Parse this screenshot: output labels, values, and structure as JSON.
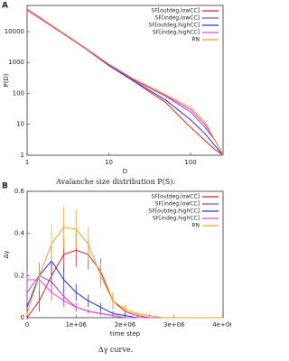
{
  "chart_data": [
    {
      "type": "line",
      "label": "A",
      "xlabel": "D",
      "ylabel": "P(D)",
      "caption": "Avalanche size distribution P(S).",
      "xlog": true,
      "ylog": true,
      "xlim": [
        1,
        250
      ],
      "ylim": [
        1,
        70000
      ],
      "xticks": [
        1,
        10,
        100
      ],
      "yticks": [
        1,
        10,
        100,
        1000,
        10000
      ],
      "x": [
        1,
        2,
        5,
        10,
        20,
        50,
        100,
        150,
        200,
        250
      ],
      "series": [
        {
          "name": "SF[outdeg,lowCC]",
          "color": "#e02020",
          "values": [
            50000,
            15000,
            3000,
            800,
            250,
            50,
            8,
            3,
            1.5,
            1
          ]
        },
        {
          "name": "SF[indeg,lowCC]",
          "color": "#a040c0",
          "values": [
            50000,
            15000,
            3000,
            850,
            280,
            80,
            25,
            8,
            3,
            1
          ]
        },
        {
          "name": "SF[outdeg,highCC]",
          "color": "#2030e0",
          "values": [
            50000,
            15000,
            3000,
            800,
            260,
            60,
            14,
            5,
            2,
            1
          ]
        },
        {
          "name": "SF[indeg,highCC]",
          "color": "#e040e0",
          "values": [
            50000,
            15000,
            3000,
            850,
            290,
            85,
            30,
            10,
            3,
            1
          ]
        },
        {
          "name": "RN",
          "color": "#f0a020",
          "values": [
            55000,
            16000,
            3200,
            900,
            300,
            90,
            35,
            12,
            3,
            1
          ]
        }
      ]
    },
    {
      "type": "line",
      "label": "B",
      "xlabel": "time step",
      "ylabel": "Δγ",
      "caption": "Δγ curve.",
      "xlim": [
        0,
        4000000
      ],
      "ylim": [
        0,
        0.6
      ],
      "xticks": [
        0,
        {
          "value": 1000000,
          "label": "1e+06"
        },
        {
          "value": 2000000,
          "label": "2e+06"
        },
        {
          "value": 3000000,
          "label": "3e+06"
        },
        {
          "value": 4000000,
          "label": "4e+06"
        }
      ],
      "yticks": [
        0,
        0.2,
        0.4,
        0.6
      ],
      "x": [
        0,
        250000,
        500000,
        750000,
        1000000,
        1250000,
        1500000,
        1750000,
        2000000,
        2250000,
        2500000,
        2750000,
        3000000,
        3250000,
        3500000,
        3750000,
        4000000
      ],
      "series": [
        {
          "name": "SF[outdeg,lowCC]",
          "color": "#e02020",
          "values": [
            0,
            0.08,
            0.2,
            0.3,
            0.32,
            0.3,
            0.22,
            0.08,
            0.03,
            0.01,
            0,
            0,
            0,
            0,
            0,
            0,
            0
          ],
          "errors": [
            0.01,
            0.05,
            0.08,
            0.08,
            0.08,
            0.07,
            0.06,
            0.04,
            0.02,
            0.01,
            0,
            0,
            0,
            0,
            0,
            0,
            0
          ]
        },
        {
          "name": "SF[indeg,lowCC]",
          "color": "#a040c0",
          "values": [
            0.12,
            0.2,
            0.17,
            0.1,
            0.05,
            0.03,
            0.02,
            0.01,
            0,
            0,
            0,
            0,
            0,
            0,
            0,
            0,
            0
          ],
          "errors": [
            0.04,
            0.06,
            0.05,
            0.03,
            0.02,
            0.01,
            0.01,
            0.01,
            0,
            0,
            0,
            0,
            0,
            0,
            0,
            0,
            0
          ]
        },
        {
          "name": "SF[outdeg,highCC]",
          "color": "#2030e0",
          "values": [
            0.05,
            0.2,
            0.27,
            0.18,
            0.12,
            0.08,
            0.05,
            0.02,
            0.01,
            0,
            0,
            0,
            0,
            0,
            0,
            0,
            0
          ],
          "errors": [
            0.02,
            0.06,
            0.07,
            0.06,
            0.04,
            0.03,
            0.02,
            0.01,
            0.01,
            0,
            0,
            0,
            0,
            0,
            0,
            0,
            0
          ]
        },
        {
          "name": "SF[indeg,highCC]",
          "color": "#e040e0",
          "values": [
            0.18,
            0.18,
            0.12,
            0.08,
            0.05,
            0.03,
            0.02,
            0.01,
            0,
            0,
            0,
            0,
            0,
            0,
            0,
            0,
            0
          ],
          "errors": [
            0.05,
            0.05,
            0.04,
            0.03,
            0.02,
            0.01,
            0.01,
            0.01,
            0,
            0,
            0,
            0,
            0,
            0,
            0,
            0,
            0
          ]
        },
        {
          "name": "RN",
          "color": "#f0a020",
          "values": [
            0.02,
            0.2,
            0.35,
            0.43,
            0.42,
            0.35,
            0.2,
            0.08,
            0.04,
            0.02,
            0.01,
            0,
            0,
            0,
            0,
            0,
            0
          ],
          "errors": [
            0.01,
            0.06,
            0.09,
            0.1,
            0.09,
            0.08,
            0.06,
            0.04,
            0.02,
            0.01,
            0.01,
            0,
            0,
            0,
            0,
            0,
            0
          ]
        }
      ]
    }
  ]
}
